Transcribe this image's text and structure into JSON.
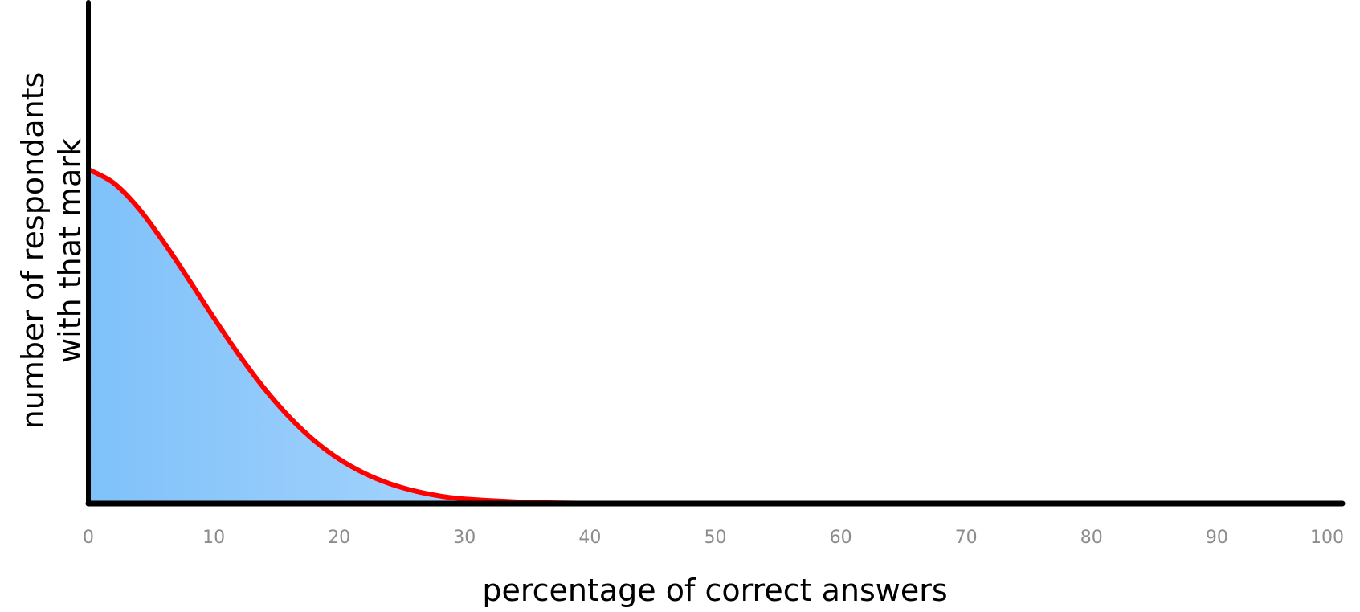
{
  "chart_data": {
    "type": "area",
    "title": "",
    "xlabel": "percentage of correct answers",
    "ylabel_lines": [
      "number of respondants",
      "with that mark"
    ],
    "xlim": [
      0,
      100
    ],
    "ylim": [
      0,
      1.5
    ],
    "xticks": [
      0,
      10,
      20,
      30,
      40,
      50,
      60,
      70,
      80,
      90,
      100
    ],
    "yticks": [],
    "grid": false,
    "legend": "none",
    "series": [
      {
        "x": [
          0,
          2,
          4,
          6,
          8,
          10,
          12,
          14,
          16,
          18,
          20,
          22,
          24,
          26,
          28,
          30,
          35,
          40,
          45,
          50,
          60,
          70,
          80,
          90,
          100
        ],
        "y": [
          1.0,
          0.96,
          0.884,
          0.783,
          0.671,
          0.556,
          0.446,
          0.346,
          0.26,
          0.189,
          0.133,
          0.091,
          0.06,
          0.038,
          0.023,
          0.014,
          0.004,
          0.001,
          0,
          0,
          0,
          0,
          0,
          0,
          0
        ]
      }
    ],
    "colors": {
      "curve": "#ff0000",
      "fill_left": "#7fc1fa",
      "fill_right": "#ffffff",
      "axis": "#000000",
      "tick_text": "#8c8c8c"
    }
  }
}
